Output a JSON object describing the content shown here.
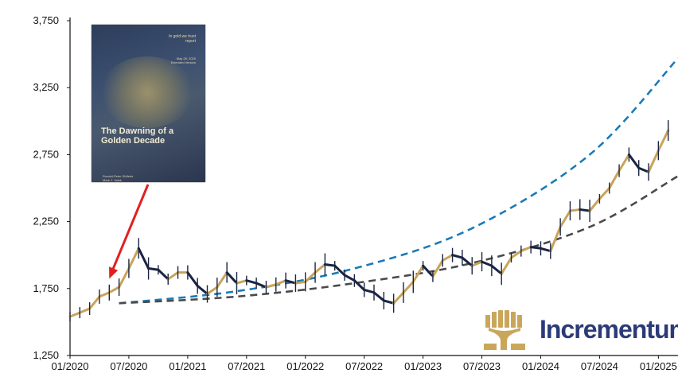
{
  "chart_data": {
    "type": "line",
    "title": "",
    "xlabel": "",
    "ylabel": "",
    "ylim": [
      1250,
      3750
    ],
    "yticks": [
      "3,750",
      "3,250",
      "2,750",
      "2,250",
      "1,750",
      "1,250"
    ],
    "ytick_values": [
      3750,
      3250,
      2750,
      2250,
      1750,
      1250
    ],
    "xlim": [
      "2020-01",
      "2025-03"
    ],
    "xticks": [
      "01/2020",
      "07/2020",
      "01/2021",
      "07/2021",
      "01/2022",
      "07/2022",
      "01/2023",
      "07/2023",
      "01/2024",
      "07/2024",
      "01/2025"
    ],
    "grid": false,
    "series": [
      {
        "style": "gold and navy candlestick price line",
        "color_up": "#c8a45a",
        "color_down": "#1a2442",
        "x": [
          "2020-01",
          "2020-02",
          "2020-03",
          "2020-04",
          "2020-05",
          "2020-06",
          "2020-07",
          "2020-08",
          "2020-09",
          "2020-10",
          "2020-11",
          "2020-12",
          "2021-01",
          "2021-02",
          "2021-03",
          "2021-04",
          "2021-05",
          "2021-06",
          "2021-07",
          "2021-08",
          "2021-09",
          "2021-10",
          "2021-11",
          "2021-12",
          "2022-01",
          "2022-02",
          "2022-03",
          "2022-04",
          "2022-05",
          "2022-06",
          "2022-07",
          "2022-08",
          "2022-09",
          "2022-10",
          "2022-11",
          "2022-12",
          "2023-01",
          "2023-02",
          "2023-03",
          "2023-04",
          "2023-05",
          "2023-06",
          "2023-07",
          "2023-08",
          "2023-09",
          "2023-10",
          "2023-11",
          "2023-12",
          "2024-01",
          "2024-02",
          "2024-03",
          "2024-04",
          "2024-05",
          "2024-06",
          "2024-07",
          "2024-08",
          "2024-09",
          "2024-10",
          "2024-11",
          "2024-12",
          "2025-01",
          "2025-02"
        ],
        "values": [
          1540,
          1570,
          1600,
          1690,
          1720,
          1760,
          1900,
          2050,
          1900,
          1890,
          1820,
          1870,
          1870,
          1770,
          1710,
          1760,
          1870,
          1790,
          1810,
          1790,
          1760,
          1780,
          1810,
          1790,
          1800,
          1870,
          1930,
          1920,
          1850,
          1810,
          1740,
          1720,
          1660,
          1640,
          1720,
          1800,
          1920,
          1840,
          1960,
          2000,
          1980,
          1920,
          1950,
          1920,
          1860,
          1980,
          2030,
          2060,
          2050,
          2030,
          2210,
          2330,
          2340,
          2330,
          2420,
          2500,
          2630,
          2750,
          2650,
          2620,
          2780,
          2930
        ]
      },
      {
        "style": "blue dashed exponential trend",
        "color": "#1a7bb8",
        "x": [
          "2020-06",
          "2021-06",
          "2022-06",
          "2023-06",
          "2024-06",
          "2025-03"
        ],
        "values": [
          1640,
          1730,
          1900,
          2200,
          2750,
          3470
        ]
      },
      {
        "style": "dark grey dashed trend",
        "color": "#4a4a4a",
        "x": [
          "2020-06",
          "2021-06",
          "2022-06",
          "2023-06",
          "2024-06",
          "2025-03"
        ],
        "values": [
          1640,
          1690,
          1790,
          1940,
          2210,
          2590
        ]
      }
    ],
    "annotations": [
      {
        "type": "arrow",
        "color": "#e02020",
        "from": "report-cover",
        "to": "2020-05"
      }
    ]
  },
  "report_cover": {
    "publisher_line1": "In gold we trust",
    "publisher_line2": "report",
    "subtitle_line1": "May 28, 2020",
    "subtitle_line2": "Extended Version",
    "title": "The Dawning of a Golden Decade",
    "authors_line1": "Ronald-Peter Stöferle",
    "authors_line2": "Mark J. Valek"
  },
  "brand": {
    "name": "Incrementum"
  }
}
